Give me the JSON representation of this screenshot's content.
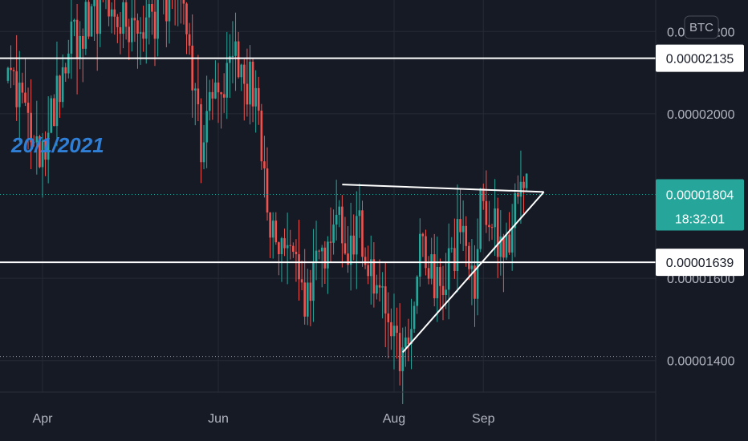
{
  "chart_data": {
    "type": "candlestick",
    "currency": "BTC",
    "annotation": "20/1/2021",
    "y_ticks": [
      {
        "value": 2.2e-05,
        "label": "0.00002200"
      },
      {
        "value": 2e-05,
        "label": "0.00002000"
      },
      {
        "value": 1.6e-05,
        "label": "0.00001600"
      },
      {
        "value": 1.4e-05,
        "label": "0.00001400"
      }
    ],
    "x_ticks": [
      {
        "label": "Apr",
        "day": 0
      },
      {
        "label": "Jun",
        "day": 61
      },
      {
        "label": "Aug",
        "day": 122
      },
      {
        "label": "Sep",
        "day": 153
      }
    ],
    "horizontal_levels": [
      {
        "value": 2.135e-05,
        "label": "0.00002135"
      },
      {
        "value": 1.639e-05,
        "label": "0.00001639"
      }
    ],
    "current_price": {
      "value": 1.804e-05,
      "label": "0.00001804",
      "countdown": "18:32:01"
    },
    "low_level": 1.41e-05,
    "triangle": {
      "upper": [
        {
          "day": 104,
          "value": 1.828e-05
        },
        {
          "day": 174,
          "value": 1.81e-05
        }
      ],
      "lower": [
        {
          "day": 125,
          "value": 1.42e-05
        },
        {
          "day": 174,
          "value": 1.81e-05
        }
      ]
    },
    "price_path": [
      {
        "day": -12,
        "value": 2.08e-05
      },
      {
        "day": 0,
        "value": 1.9e-05
      },
      {
        "day": 8,
        "value": 2.15e-05
      },
      {
        "day": 20,
        "value": 2.26e-05
      },
      {
        "day": 34,
        "value": 2.18e-05
      },
      {
        "day": 44,
        "value": 2.29e-05
      },
      {
        "day": 50,
        "value": 2.25e-05
      },
      {
        "day": 55,
        "value": 1.9e-05
      },
      {
        "day": 60,
        "value": 2.08e-05
      },
      {
        "day": 67,
        "value": 2.12e-05
      },
      {
        "day": 74,
        "value": 2.05e-05
      },
      {
        "day": 78,
        "value": 1.76e-05
      },
      {
        "day": 85,
        "value": 1.67e-05
      },
      {
        "day": 88,
        "value": 1.6e-05
      },
      {
        "day": 92,
        "value": 1.53e-05
      },
      {
        "day": 96,
        "value": 1.64e-05
      },
      {
        "day": 102,
        "value": 1.75e-05
      },
      {
        "day": 106,
        "value": 1.68e-05
      },
      {
        "day": 110,
        "value": 1.73e-05
      },
      {
        "day": 116,
        "value": 1.6e-05
      },
      {
        "day": 121,
        "value": 1.5e-05
      },
      {
        "day": 124,
        "value": 1.43e-05
      },
      {
        "day": 128,
        "value": 1.51e-05
      },
      {
        "day": 131,
        "value": 1.66e-05
      },
      {
        "day": 134,
        "value": 1.64e-05
      },
      {
        "day": 138,
        "value": 1.55e-05
      },
      {
        "day": 142,
        "value": 1.66e-05
      },
      {
        "day": 146,
        "value": 1.71e-05
      },
      {
        "day": 150,
        "value": 1.58e-05
      },
      {
        "day": 152,
        "value": 1.8e-05
      },
      {
        "day": 157,
        "value": 1.72e-05
      },
      {
        "day": 161,
        "value": 1.67e-05
      },
      {
        "day": 166,
        "value": 1.8e-05
      },
      {
        "day": 168,
        "value": 1.8e-05
      }
    ],
    "colors": {
      "up": "#26a69a",
      "down": "#ef5350",
      "background": "#161a25",
      "grid": "#262a35",
      "level_line": "#ffffff",
      "current_price": "#26a69a",
      "watermark": "#2f7fd6"
    }
  }
}
